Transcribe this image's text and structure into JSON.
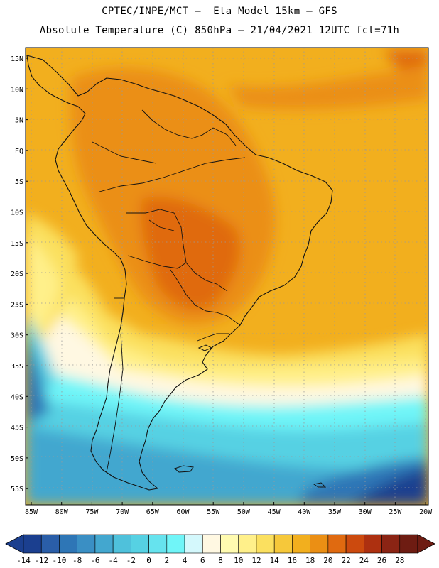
{
  "header": {
    "line1": "CPTEC/INPE/MCT –  Eta Model 15km – GFS",
    "line2": "Absolute Temperature (C) 850hPa – 21/04/2021 12UTC fct=71h"
  },
  "map": {
    "region": "South America",
    "lat_labels": [
      "15N",
      "10N",
      "5N",
      "EQ",
      "5S",
      "10S",
      "15S",
      "20S",
      "25S",
      "30S",
      "35S",
      "40S",
      "45S",
      "50S",
      "55S"
    ],
    "lon_labels": [
      "85W",
      "80W",
      "75W",
      "70W",
      "65W",
      "60W",
      "55W",
      "50W",
      "45W",
      "40W",
      "35W",
      "30W",
      "25W",
      "20W"
    ]
  },
  "colorbar": {
    "labels": [
      "-14",
      "-12",
      "-10",
      "-8",
      "-6",
      "-4",
      "-2",
      "0",
      "2",
      "4",
      "6",
      "8",
      "10",
      "12",
      "14",
      "16",
      "18",
      "20",
      "22",
      "24",
      "26",
      "28"
    ],
    "colors": [
      "#1b3f8f",
      "#2a5ea8",
      "#2e76b6",
      "#3a8fc4",
      "#43a7cf",
      "#4fc1db",
      "#56d1e3",
      "#66e3ee",
      "#70f5f8",
      "#d4f8fc",
      "#fff8e2",
      "#fffbb0",
      "#fff08a",
      "#fbe05f",
      "#f6c83a",
      "#f2af1e",
      "#eb8f14",
      "#e06a10",
      "#cc4a0e",
      "#ad3010",
      "#8b2414",
      "#6e1c12"
    ],
    "under_color": "#1b3f8f",
    "over_color": "#6e1c12"
  }
}
